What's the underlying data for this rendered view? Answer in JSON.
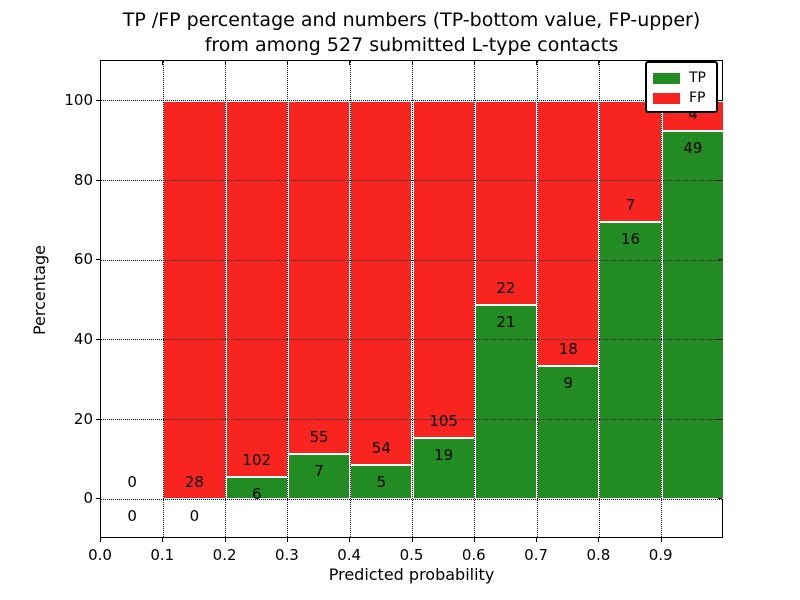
{
  "title": {
    "line1": "TP /FP percentage and numbers (TP-bottom value, FP-upper)",
    "line2": "from among 527 submitted L-type contacts"
  },
  "axes": {
    "xlabel": "Predicted probability",
    "ylabel": "Percentage",
    "xlim": [
      0.0,
      1.0
    ],
    "ylim": [
      -10,
      110
    ],
    "x_tick_values": [
      0.0,
      0.1,
      0.2,
      0.3,
      0.4,
      0.5,
      0.6,
      0.7,
      0.8,
      0.9
    ],
    "x_tick_labels": [
      "0.0",
      "0.1",
      "0.2",
      "0.3",
      "0.4",
      "0.5",
      "0.6",
      "0.7",
      "0.8",
      "0.9"
    ],
    "y_tick_values": [
      0,
      20,
      40,
      60,
      80,
      100
    ],
    "y_tick_labels": [
      "0",
      "20",
      "40",
      "60",
      "80",
      "100"
    ],
    "x_grid_values": [
      0.1,
      0.2,
      0.3,
      0.4,
      0.5,
      0.6,
      0.7,
      0.8,
      0.9
    ],
    "y_grid_values": [
      0,
      20,
      40,
      60,
      80,
      100
    ],
    "grid_style": "dotted"
  },
  "legend": {
    "position": "upper right",
    "entries": [
      {
        "label": "TP",
        "color": "#228b22"
      },
      {
        "label": "FP",
        "color": "#f82420"
      }
    ]
  },
  "colors": {
    "tp": "#228b22",
    "fp": "#f82420",
    "background": "#ffffff",
    "grid": "#111111",
    "text": "#000000"
  },
  "chart_data": {
    "type": "bar",
    "stacked": true,
    "normalized_to_percent": true,
    "total_submitted": 527,
    "title": "TP /FP percentage and numbers (TP-bottom value, FP-upper) from among 527 submitted L-type contacts",
    "xlabel": "Predicted probability",
    "ylabel": "Percentage",
    "bins": [
      {
        "range": [
          0.0,
          0.1
        ],
        "tp": 0,
        "fp": 0,
        "tp_pct": 0.0
      },
      {
        "range": [
          0.1,
          0.2
        ],
        "tp": 0,
        "fp": 28,
        "tp_pct": 0.0
      },
      {
        "range": [
          0.2,
          0.3
        ],
        "tp": 6,
        "fp": 102,
        "tp_pct": 5.6
      },
      {
        "range": [
          0.3,
          0.4
        ],
        "tp": 7,
        "fp": 55,
        "tp_pct": 11.3
      },
      {
        "range": [
          0.4,
          0.5
        ],
        "tp": 5,
        "fp": 54,
        "tp_pct": 8.5
      },
      {
        "range": [
          0.5,
          0.6
        ],
        "tp": 19,
        "fp": 105,
        "tp_pct": 15.3
      },
      {
        "range": [
          0.6,
          0.7
        ],
        "tp": 21,
        "fp": 22,
        "tp_pct": 48.8
      },
      {
        "range": [
          0.7,
          0.8
        ],
        "tp": 9,
        "fp": 18,
        "tp_pct": 33.3
      },
      {
        "range": [
          0.8,
          0.9
        ],
        "tp": 16,
        "fp": 7,
        "tp_pct": 69.6
      },
      {
        "range": [
          0.9,
          1.0
        ],
        "tp": 49,
        "fp": 4,
        "tp_pct": 92.5
      }
    ],
    "series": [
      {
        "name": "TP",
        "color": "#228b22",
        "counts": [
          0,
          0,
          6,
          7,
          5,
          19,
          21,
          9,
          16,
          49
        ]
      },
      {
        "name": "FP",
        "color": "#f82420",
        "counts": [
          0,
          28,
          102,
          55,
          54,
          105,
          22,
          18,
          7,
          4
        ]
      }
    ]
  }
}
